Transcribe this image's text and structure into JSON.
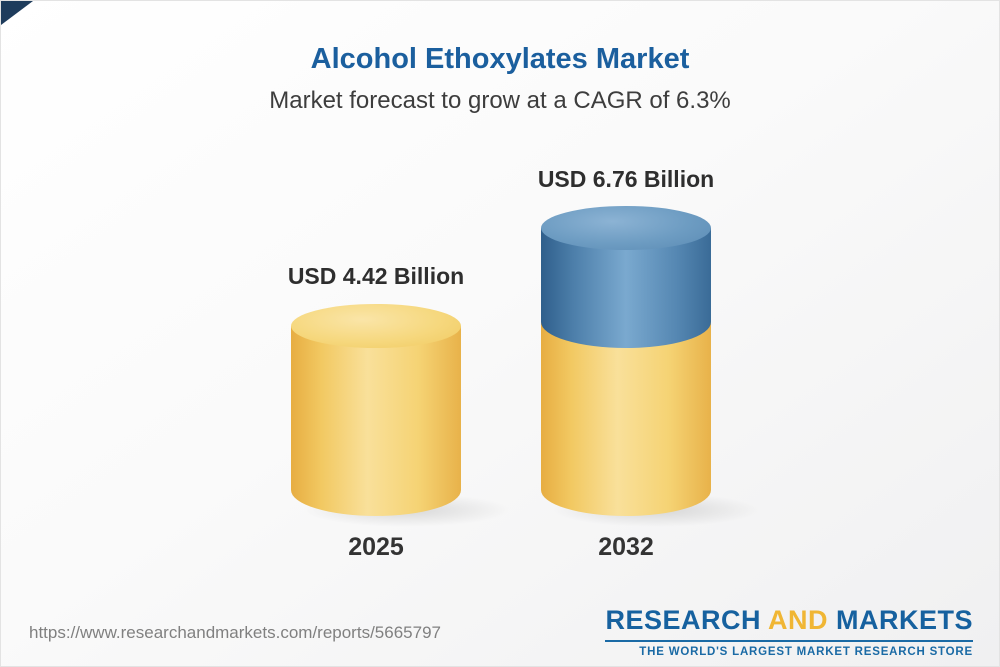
{
  "header": {
    "title": "Alcohol Ethoxylates Market",
    "subtitle": "Market forecast to grow at a CAGR of 6.3%"
  },
  "chart_data": {
    "type": "bar",
    "categories": [
      "2025",
      "2032"
    ],
    "values": [
      4.42,
      6.76
    ],
    "unit": "USD Billion",
    "value_labels": [
      "USD 4.42 Billion",
      "USD 6.76 Billion"
    ],
    "title": "Alcohol Ethoxylates Market",
    "subtitle": "Market forecast to grow at a CAGR of 6.3%",
    "cagr_percent": 6.3,
    "style": "3d-cylinder",
    "colors": {
      "base_segment": "#f2c962",
      "growth_segment": "#4e80ab"
    },
    "notes": "2032 cylinder shows 2025 base value in yellow and incremental growth in blue"
  },
  "footer": {
    "url": "https://www.researchandmarkets.com/reports/5665797",
    "logo": {
      "research": "RESEARCH",
      "and": "AND",
      "markets": "MARKETS",
      "tagline": "THE WORLD'S LARGEST MARKET RESEARCH STORE"
    }
  }
}
